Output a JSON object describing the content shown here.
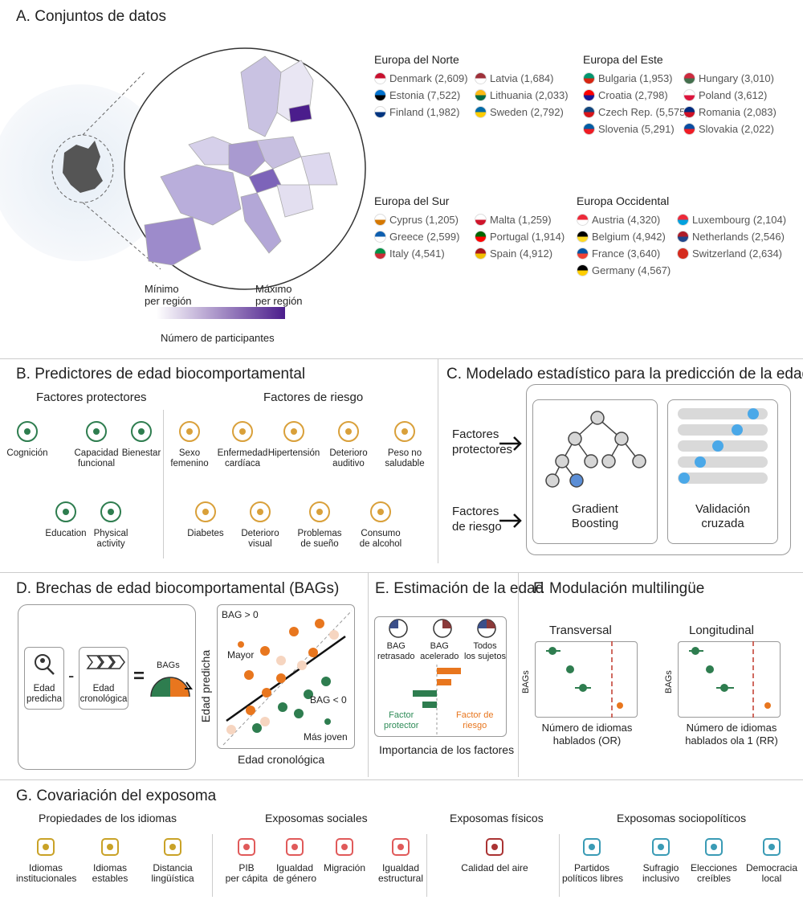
{
  "panelA": {
    "title": "A. Conjuntos de datos",
    "legend_min": "Mínimo\nper región",
    "legend_max": "Máximo\nper región",
    "legend_caption": "Número de participantes",
    "groups": [
      {
        "name": "Europa del Norte",
        "countries": [
          {
            "label": "Denmark (2,609)",
            "c1": "#c8102e",
            "c2": "#ffffff"
          },
          {
            "label": "Latvia (1,684)",
            "c1": "#9e3039",
            "c2": "#ffffff"
          },
          {
            "label": "Estonia (7,522)",
            "c1": "#0072ce",
            "c2": "#000000"
          },
          {
            "label": "Lithuania (2,033)",
            "c1": "#fdb913",
            "c2": "#006a44"
          },
          {
            "label": "Finland (1,982)",
            "c1": "#ffffff",
            "c2": "#003580"
          },
          {
            "label": "Sweden (2,792)",
            "c1": "#006aa7",
            "c2": "#fecc00"
          }
        ]
      },
      {
        "name": "Europa del Este",
        "countries": [
          {
            "label": "Bulgaria (1,953)",
            "c1": "#00966e",
            "c2": "#d62612"
          },
          {
            "label": "Hungary (3,010)",
            "c1": "#cd2a3e",
            "c2": "#436f4d"
          },
          {
            "label": "Croatia (2,798)",
            "c1": "#ff0000",
            "c2": "#171796"
          },
          {
            "label": "Poland (3,612)",
            "c1": "#ffffff",
            "c2": "#dc143c"
          },
          {
            "label": "Czech Rep. (5,575)",
            "c1": "#11457e",
            "c2": "#d7141a"
          },
          {
            "label": "Romania (2,083)",
            "c1": "#002b7f",
            "c2": "#ce1126"
          },
          {
            "label": "Slovenia (5,291)",
            "c1": "#005da4",
            "c2": "#ed1c24"
          },
          {
            "label": "Slovakia (2,022)",
            "c1": "#0b4ea2",
            "c2": "#ee1c25"
          }
        ]
      },
      {
        "name": "Europa del Sur",
        "countries": [
          {
            "label": "Cyprus (1,205)",
            "c1": "#ffffff",
            "c2": "#d57800"
          },
          {
            "label": "Malta (1,259)",
            "c1": "#ffffff",
            "c2": "#cf142b"
          },
          {
            "label": "Greece (2,599)",
            "c1": "#0d5eaf",
            "c2": "#ffffff"
          },
          {
            "label": "Portugal (1,914)",
            "c1": "#006600",
            "c2": "#ff0000"
          },
          {
            "label": "Italy (4,541)",
            "c1": "#009246",
            "c2": "#ce2b37"
          },
          {
            "label": "Spain (4,912)",
            "c1": "#aa151b",
            "c2": "#f1bf00"
          }
        ]
      },
      {
        "name": "Europa Occidental",
        "countries": [
          {
            "label": "Austria (4,320)",
            "c1": "#ed2939",
            "c2": "#ffffff"
          },
          {
            "label": "Luxembourg (2,104)",
            "c1": "#ed2939",
            "c2": "#00a1de"
          },
          {
            "label": "Belgium (4,942)",
            "c1": "#000000",
            "c2": "#fdda24"
          },
          {
            "label": "Netherlands (2,546)",
            "c1": "#ae1c28",
            "c2": "#21468b"
          },
          {
            "label": "France (3,640)",
            "c1": "#0055a4",
            "c2": "#ef4135"
          },
          {
            "label": "Switzerland (2,634)",
            "c1": "#d52b1e",
            "c2": "#d52b1e"
          },
          {
            "label": "Germany (4,567)",
            "c1": "#000000",
            "c2": "#ffce00"
          }
        ]
      }
    ]
  },
  "panelB": {
    "title": "B. Predictores de edad biocomportamental",
    "protective_title": "Factores protectores",
    "risk_title": "Factores de riesgo",
    "protective": [
      "Cognición",
      "Capacidad\nfuncional",
      "Bienestar",
      "Education",
      "Physical\nactivity"
    ],
    "risk": [
      "Sexo\nfemenino",
      "Enfermedad\ncardíaca",
      "Hipertensión",
      "Deterioro\nauditivo",
      "Peso no\nsaludable",
      "Diabetes",
      "Deterioro\nvisual",
      "Problemas\nde sueño",
      "Consumo\nde alcohol"
    ]
  },
  "panelC": {
    "title": "C. Modelado estadístico para la predicción de la edad",
    "protective": "Factores\nprotectores",
    "risk": "Factores\nde riesgo",
    "model1": "Gradient\nBoosting",
    "model2": "Validación\ncruzada"
  },
  "panelD": {
    "title": "D. Brechas de edad biocomportamental (BAGs)",
    "predicted": "Edad\npredicha",
    "chronological": "Edad\ncronológica",
    "minus": "-",
    "equals": "=",
    "bags": "BAGs",
    "ylabel": "Edad predicha",
    "xlabel": "Edad cronológica",
    "bag_pos": "BAG > 0",
    "older": "Mayor",
    "bag_neg": "BAG < 0",
    "younger": "Más joven"
  },
  "panelE": {
    "title": "E. Estimación de la edad",
    "clocks": [
      "BAG\nretrasado",
      "BAG\nacelerado",
      "Todos\nlos sujetos"
    ],
    "protective": "Factor\nprotector",
    "risk": "Factor de\nriesgo",
    "caption": "Importancia de los factores"
  },
  "panelF": {
    "title": "F. Modulación multilingüe",
    "left_title": "Transversal",
    "right_title": "Longitudinal",
    "ylabel": "BAGs",
    "left_caption": "Número de idiomas\nhablados (OR)",
    "right_caption": "Número de idiomas\nhablados ola 1 (RR)"
  },
  "panelG": {
    "title": "G. Covariación del exposoma",
    "groups": [
      {
        "name": "Propiedades de los idiomas",
        "items": [
          "Idiomas\ninstitucionales",
          "Idiomas\nestables",
          "Distancia\nlingüística"
        ],
        "color": "#c9a227"
      },
      {
        "name": "Exposomas sociales",
        "items": [
          "PIB\nper cápita",
          "Igualdad\nde género",
          "Migración",
          "Igualdad\nestructural"
        ],
        "color": "#e05a5a"
      },
      {
        "name": "Exposomas físicos",
        "items": [
          "Calidad del aire"
        ],
        "color": "#a33"
      },
      {
        "name": "Exposomas sociopolíticos",
        "items": [
          "Partidos\npolíticos libres",
          "Sufragio\ninclusivo",
          "Elecciones\ncreíbles",
          "Democracia\nlocal"
        ],
        "color": "#3a9bb5"
      }
    ]
  },
  "colors": {
    "green": "#2e7d4f",
    "orange": "#e8761e",
    "light_orange": "#f6d5c0",
    "purple": "#5b2a96",
    "blue": "#4aa8e8",
    "grey": "#d0d0d0",
    "gold": "#d9a03a"
  }
}
